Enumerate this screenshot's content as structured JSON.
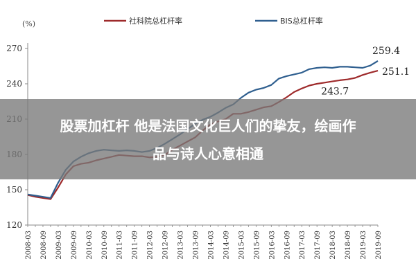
{
  "chart_data": {
    "type": "line",
    "ylabel": "(%)",
    "ylim": [
      120,
      270
    ],
    "yticks": [
      120,
      150,
      180,
      210,
      240,
      270
    ],
    "x": [
      "2008-03",
      "2008-06",
      "2008-09",
      "2008-12",
      "2009-03",
      "2009-06",
      "2009-09",
      "2009-12",
      "2010-03",
      "2010-06",
      "2010-09",
      "2010-12",
      "2011-03",
      "2011-06",
      "2011-09",
      "2011-12",
      "2012-03",
      "2012-06",
      "2012-09",
      "2012-12",
      "2013-03",
      "2013-06",
      "2013-09",
      "2013-12",
      "2014-03",
      "2014-06",
      "2014-09",
      "2014-12",
      "2015-03",
      "2015-06",
      "2015-09",
      "2015-12",
      "2016-03",
      "2016-06",
      "2016-09",
      "2016-12",
      "2017-03",
      "2017-06",
      "2017-09",
      "2017-12",
      "2018-03",
      "2018-06",
      "2018-09",
      "2018-12",
      "2019-03",
      "2019-06",
      "2019-09"
    ],
    "xtick_labels": [
      "2008-03",
      "2008-09",
      "2009-03",
      "2009-09",
      "2010-03",
      "2010-09",
      "2011-03",
      "2011-09",
      "2012-03",
      "2012-09",
      "2013-03",
      "2013-09",
      "2014-03",
      "2014-09",
      "2015-03",
      "2015-09",
      "2016-03",
      "2016-09",
      "2017-03",
      "2017-09",
      "2018-03",
      "2018-09",
      "2019-03",
      "2019-09"
    ],
    "grid": false,
    "legend_position": "top",
    "series": [
      {
        "name": "社科院总杠杆率",
        "color": "#9e2a2b",
        "values": [
          145.5,
          144,
          143,
          142,
          152,
          163,
          170,
          172,
          173,
          175,
          176.5,
          178,
          179.5,
          179,
          178.5,
          178.5,
          177.5,
          178,
          179.5,
          184,
          187.5,
          191,
          194.5,
          200.5,
          205.5,
          208,
          210,
          214.5,
          214.5,
          216,
          218,
          220,
          221,
          224.5,
          228.5,
          233,
          236,
          238.5,
          240,
          241,
          242,
          243,
          243.7,
          245,
          247.5,
          249.5,
          251.1
        ]
      },
      {
        "name": "BIS总杠杆率",
        "color": "#2f5f8f",
        "values": [
          146,
          145,
          144,
          143,
          156,
          167,
          174,
          178,
          181,
          183,
          184,
          183.5,
          183,
          183.5,
          183,
          182,
          183,
          185.5,
          189,
          193,
          197,
          201.5,
          206,
          209.5,
          212,
          215.5,
          219.5,
          222.5,
          228,
          232.5,
          235,
          236.5,
          239,
          244.5,
          246.5,
          248,
          249.5,
          252.5,
          253.5,
          254,
          253.5,
          254.5,
          254.5,
          254,
          253.5,
          255.5,
          259.4
        ]
      }
    ],
    "annotations": [
      {
        "text": "259.4",
        "x": "2019-09",
        "y": 259.4,
        "series": 1
      },
      {
        "text": "251.1",
        "x": "2019-09",
        "y": 251.1,
        "series": 0
      },
      {
        "text": "243.7",
        "x": "2018-09",
        "y": 243.7,
        "series": 0
      }
    ]
  },
  "overlay": {
    "line1": "股票加杠杆 他是法国文化巨人们的挚友，绘画作",
    "line2": "品与诗人心意相通"
  }
}
